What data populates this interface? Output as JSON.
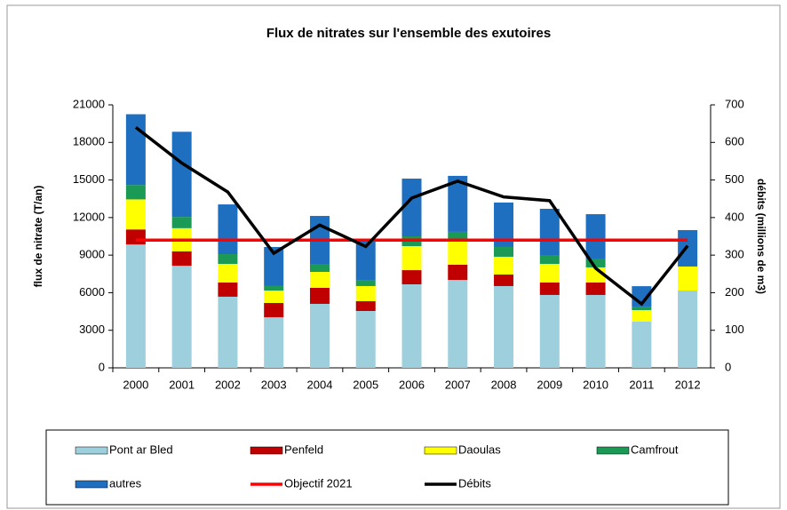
{
  "chart_data": {
    "type": "bar",
    "stacked": true,
    "title": "Flux de nitrates sur l'ensemble des exutoires",
    "y_label": "flux de nitrate (T/an)",
    "y2_label": "débits (millions de m3)",
    "categories": [
      "2000",
      "2001",
      "2002",
      "2003",
      "2004",
      "2005",
      "2006",
      "2007",
      "2008",
      "2009",
      "2010",
      "2011",
      "2012"
    ],
    "series": [
      {
        "name": "Pont ar Bled",
        "type": "bar",
        "color": "#9dcfdd",
        "values": [
          9850,
          8150,
          5680,
          4040,
          5110,
          4540,
          6670,
          7020,
          6530,
          5820,
          5820,
          3690,
          6170
        ]
      },
      {
        "name": "Penfeld",
        "type": "bar",
        "color": "#c00000",
        "values": [
          1200,
          1150,
          1130,
          1140,
          1280,
          780,
          1130,
          1210,
          920,
          990,
          990,
          0,
          0
        ]
      },
      {
        "name": "Daoulas",
        "type": "bar",
        "color": "#ffff00",
        "values": [
          2400,
          1850,
          1490,
          990,
          1270,
          1210,
          1920,
          1920,
          1420,
          1490,
          1210,
          920,
          1920
        ]
      },
      {
        "name": "Camfrout",
        "type": "bar",
        "color": "#1a9a55",
        "values": [
          1150,
          900,
          780,
          360,
          640,
          490,
          780,
          710,
          780,
          710,
          640,
          280,
          0
        ]
      },
      {
        "name": "autres",
        "type": "bar",
        "color": "#1f6fc0",
        "values": [
          5650,
          6800,
          3970,
          3120,
          3830,
          3200,
          4610,
          4470,
          3550,
          3690,
          3610,
          1630,
          2910
        ]
      },
      {
        "name": "Objectif 2021",
        "type": "line",
        "color": "#ff0000",
        "values": [
          10200,
          10200,
          10200,
          10200,
          10200,
          10200,
          10200,
          10200,
          10200,
          10200,
          10200,
          10200,
          10200
        ]
      },
      {
        "name": "Débits",
        "type": "line",
        "axis": "y2",
        "color": "#000000",
        "values": [
          640,
          545,
          468,
          305,
          380,
          323,
          452,
          497,
          455,
          445,
          265,
          170,
          325
        ]
      }
    ],
    "ylim": [
      0,
      21000
    ],
    "yticks": [
      0,
      3000,
      6000,
      9000,
      12000,
      15000,
      18000,
      21000
    ],
    "y2lim": [
      0,
      700
    ],
    "y2ticks": [
      0,
      100,
      200,
      300,
      400,
      500,
      600,
      700
    ],
    "grid": false
  }
}
